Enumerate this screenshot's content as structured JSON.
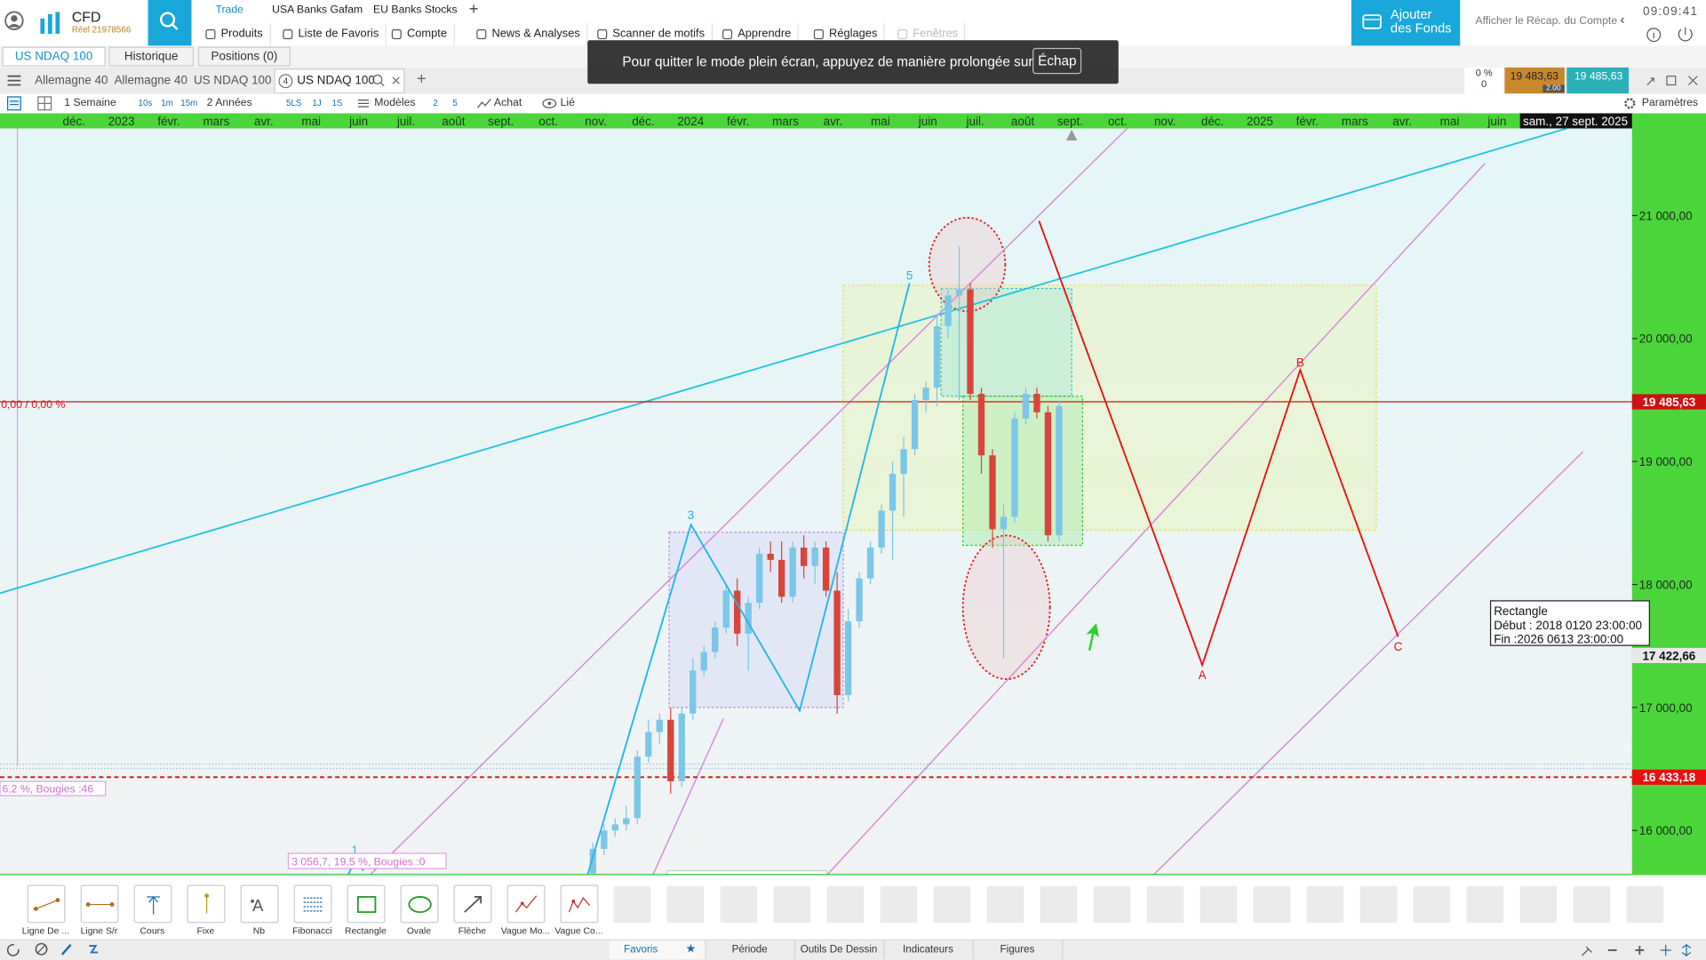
{
  "topbar": {
    "brand": "CFD",
    "account": "Réel 21978566",
    "workspaces": [
      "Trade",
      "USA Banks Gafam",
      "EU Banks Stocks"
    ],
    "add": "+",
    "menu": [
      "Produits",
      "Liste de Favoris",
      "Compte",
      "News & Analyses",
      "Scanner de motifs",
      "Apprendre",
      "Réglages",
      "Fenêtres"
    ],
    "add_funds": "Ajouter des Fonds",
    "account_summary": "Afficher le Récap. du Compte",
    "clock": "09:09:41"
  },
  "toast": {
    "text": "Pour quitter le mode plein écran, appuyez de manière prolongée sur",
    "key": "Échap"
  },
  "panel_tabs": [
    "US NDAQ 100",
    "Historique",
    "Positions (0)"
  ],
  "chart_tabs": {
    "tabs": [
      "Allemagne 40",
      "Allemagne 40",
      "US NDAQ 100",
      "US NDAQ 100"
    ],
    "badge": "4",
    "add": "+"
  },
  "quote": {
    "change": "0 %",
    "change_abs": "0",
    "bid": "19 483,63",
    "spread": "2.00",
    "ask": "19 485,63"
  },
  "toolbar": {
    "period": "1 Semaine",
    "intervals": [
      "10s",
      "1m",
      "15m"
    ],
    "range": "2 Années",
    "quick": [
      "5LS",
      "1J",
      "1S"
    ],
    "templates": "Modèles",
    "counts": [
      "2",
      "5"
    ],
    "direction": "Achat",
    "link": "Lié",
    "settings": "Paramètres"
  },
  "chart": {
    "time_labels": [
      "déc.",
      "2023",
      "févr.",
      "mars",
      "avr.",
      "mai",
      "juin",
      "juil.",
      "août",
      "sept.",
      "oct.",
      "nov.",
      "déc.",
      "2024",
      "févr.",
      "mars",
      "avr.",
      "mai",
      "juin",
      "juil.",
      "août",
      "sept.",
      "oct.",
      "nov.",
      "déc.",
      "2025",
      "févr.",
      "mars",
      "avr.",
      "mai",
      "juin"
    ],
    "cursor_date": "sam., 27 sept. 2025",
    "ylim": [
      15637,
      21708
    ],
    "yticks": [
      {
        "value": 16000,
        "label": "16 000,00"
      },
      {
        "value": 17000,
        "label": "17 000,00"
      },
      {
        "value": 18000,
        "label": "18 000,00"
      },
      {
        "value": 19000,
        "label": "19 000,00"
      },
      {
        "value": 20000,
        "label": "20 000,00"
      },
      {
        "value": 21000,
        "label": "21 000,00"
      }
    ],
    "price_lines": [
      {
        "value": 19485.63,
        "label": "19 485,63"
      },
      {
        "value": 17422.66,
        "label": "17 422,66"
      },
      {
        "value": 16433.18,
        "label": "16 433,18"
      }
    ],
    "candles": [
      {
        "open": 15650,
        "high": 15900,
        "low": 15600,
        "close": 15850
      },
      {
        "open": 15850,
        "high": 16050,
        "low": 15800,
        "close": 16000
      },
      {
        "open": 16000,
        "high": 16100,
        "low": 15950,
        "close": 16050
      },
      {
        "open": 16050,
        "high": 16200,
        "low": 16000,
        "close": 16100
      },
      {
        "open": 16100,
        "high": 16650,
        "low": 16050,
        "close": 16600
      },
      {
        "open": 16600,
        "high": 16900,
        "low": 16550,
        "close": 16800
      },
      {
        "open": 16800,
        "high": 16950,
        "low": 16700,
        "close": 16900
      },
      {
        "open": 16900,
        "high": 17000,
        "low": 16300,
        "close": 16400
      },
      {
        "open": 16400,
        "high": 17000,
        "low": 16350,
        "close": 16950
      },
      {
        "open": 16950,
        "high": 17400,
        "low": 16900,
        "close": 17300
      },
      {
        "open": 17300,
        "high": 17500,
        "low": 17250,
        "close": 17450
      },
      {
        "open": 17450,
        "high": 17700,
        "low": 17400,
        "close": 17650
      },
      {
        "open": 17650,
        "high": 18000,
        "low": 17600,
        "close": 17950
      },
      {
        "open": 17950,
        "high": 18050,
        "low": 17500,
        "close": 17600
      },
      {
        "open": 17600,
        "high": 17900,
        "low": 17300,
        "close": 17850
      },
      {
        "open": 17850,
        "high": 18300,
        "low": 17800,
        "close": 18250
      },
      {
        "open": 18250,
        "high": 18350,
        "low": 18100,
        "close": 18200
      },
      {
        "open": 18200,
        "high": 18350,
        "low": 17850,
        "close": 17900
      },
      {
        "open": 17900,
        "high": 18350,
        "low": 17850,
        "close": 18300
      },
      {
        "open": 18300,
        "high": 18400,
        "low": 18050,
        "close": 18150
      },
      {
        "open": 18150,
        "high": 18350,
        "low": 18000,
        "close": 18300
      },
      {
        "open": 18300,
        "high": 18350,
        "low": 17900,
        "close": 17950
      },
      {
        "open": 17950,
        "high": 18100,
        "low": 16950,
        "close": 17100
      },
      {
        "open": 17100,
        "high": 17800,
        "low": 17050,
        "close": 17700
      },
      {
        "open": 17700,
        "high": 18100,
        "low": 17650,
        "close": 18050
      },
      {
        "open": 18050,
        "high": 18350,
        "low": 18000,
        "close": 18300
      },
      {
        "open": 18300,
        "high": 18650,
        "low": 18250,
        "close": 18600
      },
      {
        "open": 18600,
        "high": 19000,
        "low": 18200,
        "close": 18900
      },
      {
        "open": 18900,
        "high": 19200,
        "low": 18550,
        "close": 19100
      },
      {
        "open": 19100,
        "high": 19550,
        "low": 19050,
        "close": 19500
      },
      {
        "open": 19500,
        "high": 19650,
        "low": 19400,
        "close": 19600
      },
      {
        "open": 19600,
        "high": 20200,
        "low": 19450,
        "close": 20100
      },
      {
        "open": 20100,
        "high": 20400,
        "low": 20000,
        "close": 20350
      },
      {
        "open": 20350,
        "high": 20750,
        "low": 19500,
        "close": 20400
      },
      {
        "open": 20400,
        "high": 20450,
        "low": 19500,
        "close": 19550
      },
      {
        "open": 19550,
        "high": 19600,
        "low": 18900,
        "close": 19050
      },
      {
        "open": 19050,
        "high": 19100,
        "low": 18300,
        "close": 18450
      },
      {
        "open": 18450,
        "high": 18650,
        "low": 17400,
        "close": 18550
      },
      {
        "open": 18550,
        "high": 19400,
        "low": 18500,
        "close": 19350
      },
      {
        "open": 19350,
        "high": 19600,
        "low": 19300,
        "close": 19550
      },
      {
        "open": 19550,
        "high": 19600,
        "low": 19350,
        "close": 19400
      },
      {
        "open": 19400,
        "high": 19450,
        "low": 18350,
        "close": 18400
      },
      {
        "open": 18400,
        "high": 19500,
        "low": 18350,
        "close": 19450
      }
    ],
    "annotations": {
      "percent": "0,00 / 0,00 %",
      "stats_left": "6,2 %, Bougies :46",
      "stats_bottom": "3 056,7, 19,5 %, Bougies :0",
      "waves": [
        "1",
        "3",
        "5"
      ],
      "abc": [
        "A",
        "B",
        "C"
      ],
      "tooltip": [
        "Rectangle",
        "Début : 2018 0120 23:00:00",
        "Fin :2026 0613 23:00:00"
      ]
    }
  },
  "drawing_tools": [
    "Ligne De ...",
    "Ligne S/r",
    "Cours",
    "Fixe",
    "Nb",
    "Fibonacci",
    "Rectangle",
    "Ovale",
    "Flèche",
    "Vague Mo...",
    "Vague Co..."
  ],
  "bottom_tabs": [
    "Favoris",
    "Période",
    "Outils De Dessin",
    "Indicateurs",
    "Figures"
  ]
}
